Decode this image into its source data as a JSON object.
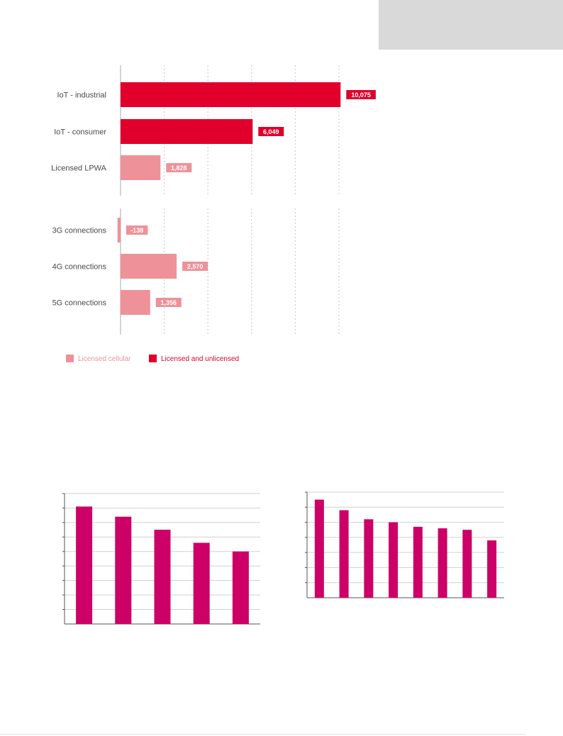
{
  "colors": {
    "licensed_cellular": "#ef9199",
    "licensed_and_unlicensed": "#e0002b",
    "small_chart_bars": "#cc0066",
    "gridline": "#c8c8c8",
    "axis": "#555555"
  },
  "chart_data": [
    {
      "type": "bar",
      "orientation": "horizontal",
      "panels": [
        {
          "categories": [
            "IoT - industrial",
            "IoT - consumer",
            "Licensed LPWA"
          ],
          "values": [
            10075,
            6049,
            1828
          ],
          "value_labels": [
            "10,075",
            "6,049",
            "1,828"
          ],
          "series_group": [
            "licensed_and_unlicensed",
            "licensed_and_unlicensed",
            "licensed_cellular"
          ]
        },
        {
          "categories": [
            "3G connections",
            "4G connections",
            "5G connections"
          ],
          "values": [
            -138,
            2570,
            1356
          ],
          "value_labels": [
            "-138",
            "2,570",
            "1,356"
          ],
          "series_group": [
            "licensed_cellular",
            "licensed_cellular",
            "licensed_cellular"
          ]
        }
      ],
      "xlim": [
        0,
        10000
      ],
      "grid_step": 2000,
      "grid": true,
      "legend": {
        "placement": "bottom-left",
        "entries": [
          {
            "key": "licensed_cellular",
            "label": "Licensed cellular"
          },
          {
            "key": "licensed_and_unlicensed",
            "label": "Licensed and unlicensed"
          }
        ]
      }
    },
    {
      "type": "bar",
      "values": [
        8.1,
        7.4,
        6.5,
        5.6,
        5.0
      ],
      "ylim": [
        0,
        9
      ],
      "grid_step": 1,
      "grid": true
    },
    {
      "type": "bar",
      "values": [
        6.5,
        5.8,
        5.2,
        5.0,
        4.7,
        4.6,
        4.5,
        3.8
      ],
      "ylim": [
        0,
        7
      ],
      "grid_step": 1,
      "grid": true
    }
  ]
}
